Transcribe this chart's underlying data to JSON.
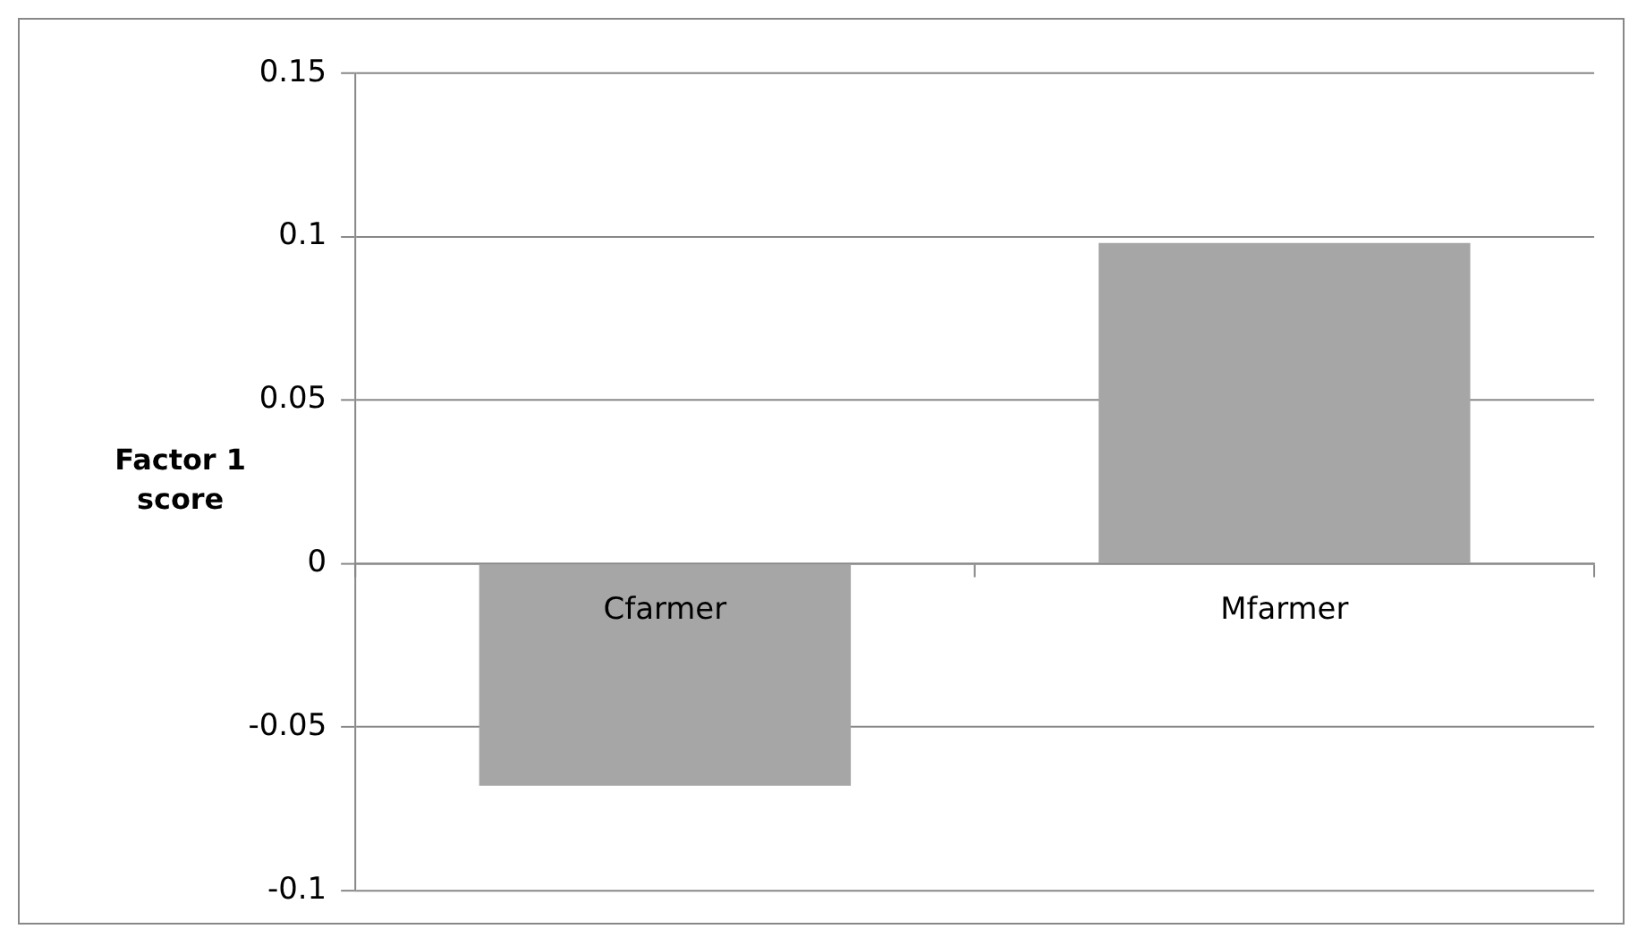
{
  "chart_data": {
    "type": "bar",
    "ylabel": "Factor 1 score",
    "categories": [
      "Cfarmer",
      "Mfarmer"
    ],
    "values": [
      -0.068,
      0.098
    ],
    "color": "#a6a6a6",
    "ylim": [
      -0.1,
      0.15
    ],
    "yticks": [
      -0.1,
      -0.05,
      0,
      0.05,
      0.1,
      0.15
    ],
    "grid": "y",
    "legend": false
  }
}
